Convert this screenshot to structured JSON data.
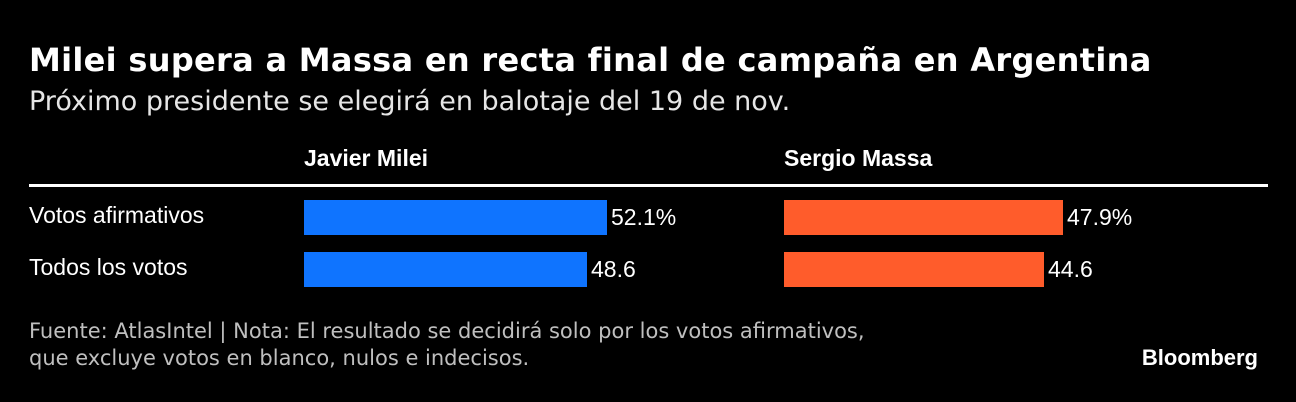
{
  "header": {
    "title": "Milei supera a Massa en recta final de campaña en Argentina",
    "subtitle": "Próximo presidente se elegirá en balotaje del 19 de nov."
  },
  "chart_data": {
    "type": "bar",
    "orientation": "horizontal",
    "categories": [
      "Votos afirmativos",
      "Todos los votos"
    ],
    "series": [
      {
        "name": "Javier Milei",
        "color": "#0F74FF",
        "values": [
          52.1,
          48.6
        ],
        "labels": [
          "52.1%",
          "48.6"
        ]
      },
      {
        "name": "Sergio Massa",
        "color": "#FF5C2B",
        "values": [
          47.9,
          44.6
        ],
        "labels": [
          "47.9%",
          "44.6"
        ]
      }
    ],
    "xlim": [
      0,
      100
    ],
    "grid": false,
    "legend": "none"
  },
  "footer": {
    "note": "Fuente: AtlasIntel | Nota: El resultado se decidirá solo por los votos afirmativos, que excluye votos en blanco, nulos e indecisos.",
    "brand": "Bloomberg"
  }
}
